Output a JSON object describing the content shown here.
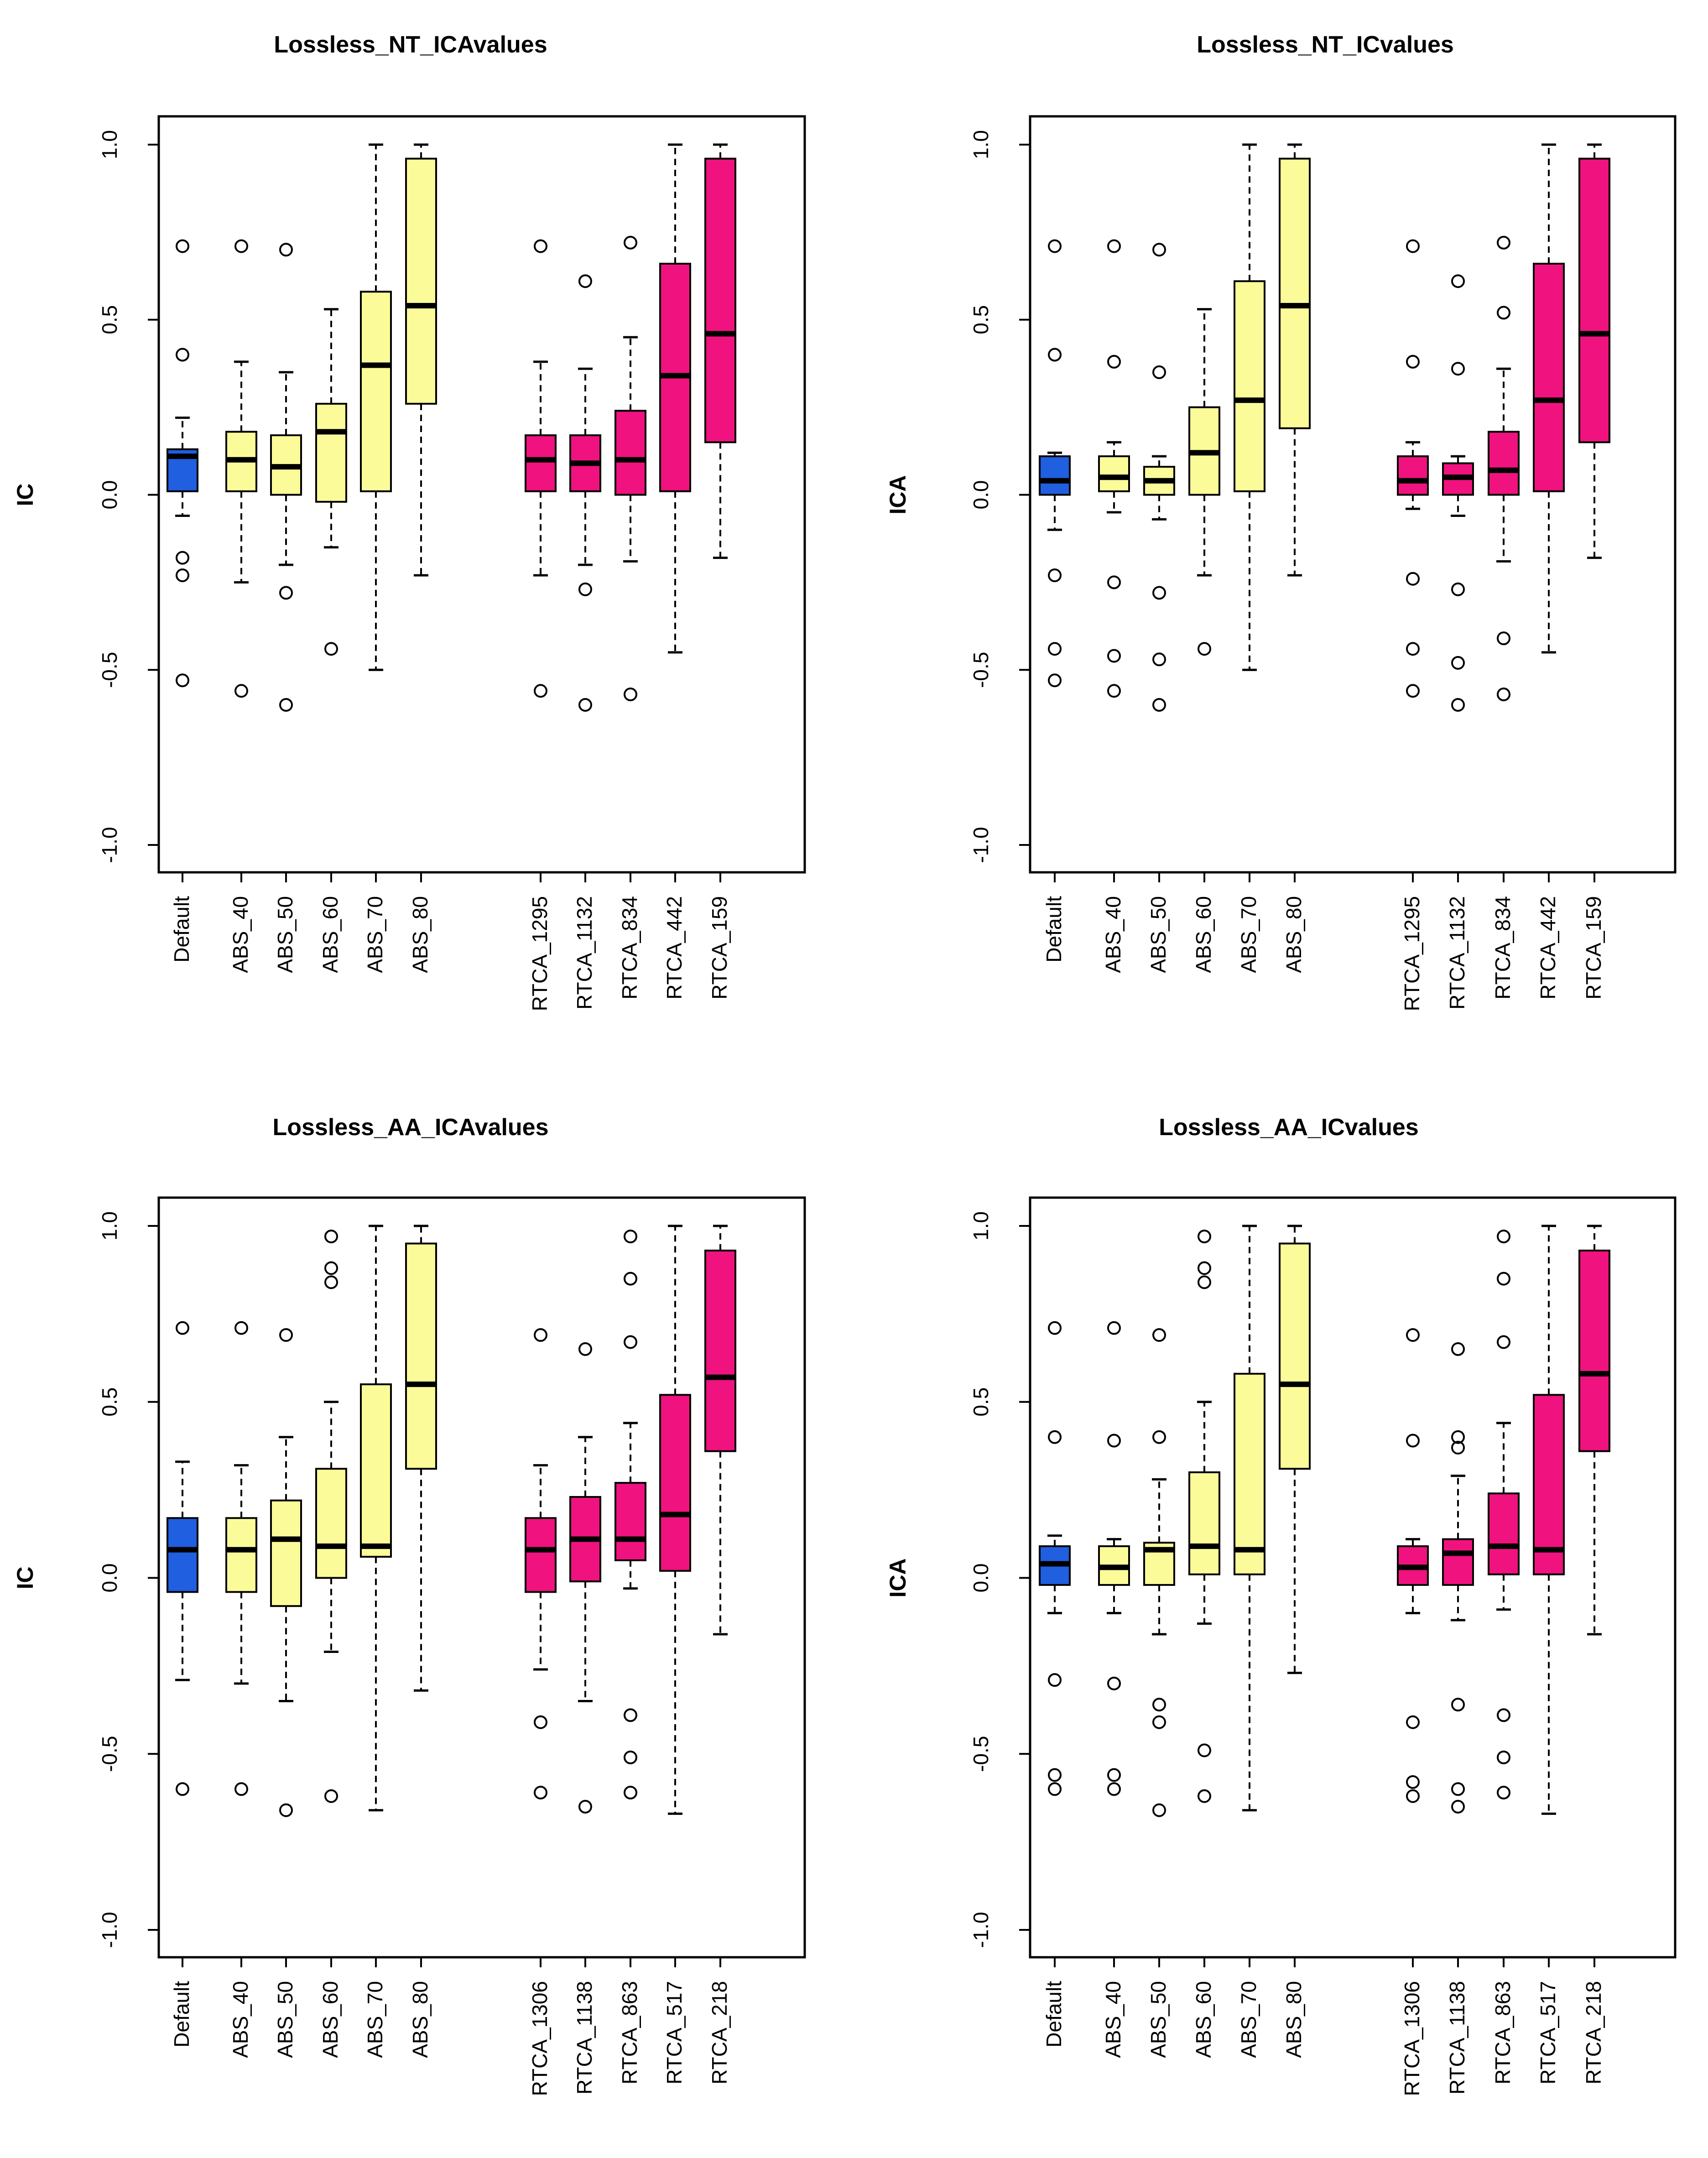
{
  "colors": {
    "default": "#1f5fe0",
    "abs": "#fbfb99",
    "rtca": "#f0127e"
  },
  "chart_data": [
    {
      "type": "box",
      "title": "Lossless_NT_ICAvalues",
      "ylabel": "IC",
      "ylim": [
        -1.0,
        1.0
      ],
      "yticks": [
        "-1.0",
        "-0.5",
        "0.0",
        "0.5",
        "1.0"
      ],
      "boxes": [
        {
          "label": "Default",
          "group": "default",
          "wlo": -0.06,
          "q1": 0.01,
          "med": 0.11,
          "q3": 0.13,
          "whi": 0.22,
          "outliers": [
            0.71,
            0.4,
            -0.18,
            -0.23,
            -0.53
          ]
        },
        {
          "label": "ABS_40",
          "group": "abs",
          "wlo": -0.25,
          "q1": 0.01,
          "med": 0.1,
          "q3": 0.18,
          "whi": 0.38,
          "outliers": [
            0.71,
            -0.56
          ]
        },
        {
          "label": "ABS_50",
          "group": "abs",
          "wlo": -0.2,
          "q1": 0.0,
          "med": 0.08,
          "q3": 0.17,
          "whi": 0.35,
          "outliers": [
            0.7,
            -0.28,
            -0.6
          ]
        },
        {
          "label": "ABS_60",
          "group": "abs",
          "wlo": -0.15,
          "q1": -0.02,
          "med": 0.18,
          "q3": 0.26,
          "whi": 0.53,
          "outliers": [
            -0.44
          ]
        },
        {
          "label": "ABS_70",
          "group": "abs",
          "wlo": -0.5,
          "q1": 0.01,
          "med": 0.37,
          "q3": 0.58,
          "whi": 1.0,
          "outliers": []
        },
        {
          "label": "ABS_80",
          "group": "abs",
          "wlo": -0.23,
          "q1": 0.26,
          "med": 0.54,
          "q3": 0.96,
          "whi": 1.0,
          "outliers": []
        },
        {
          "label": "RTCA_1295",
          "group": "rtca",
          "wlo": -0.23,
          "q1": 0.01,
          "med": 0.1,
          "q3": 0.17,
          "whi": 0.38,
          "outliers": [
            0.71,
            -0.56
          ]
        },
        {
          "label": "RTCA_1132",
          "group": "rtca",
          "wlo": -0.2,
          "q1": 0.01,
          "med": 0.09,
          "q3": 0.17,
          "whi": 0.36,
          "outliers": [
            0.61,
            -0.27,
            -0.6
          ]
        },
        {
          "label": "RTCA_834",
          "group": "rtca",
          "wlo": -0.19,
          "q1": 0.0,
          "med": 0.1,
          "q3": 0.24,
          "whi": 0.45,
          "outliers": [
            0.72,
            -0.57
          ]
        },
        {
          "label": "RTCA_442",
          "group": "rtca",
          "wlo": -0.45,
          "q1": 0.01,
          "med": 0.34,
          "q3": 0.66,
          "whi": 1.0,
          "outliers": []
        },
        {
          "label": "RTCA_159",
          "group": "rtca",
          "wlo": -0.18,
          "q1": 0.15,
          "med": 0.46,
          "q3": 0.96,
          "whi": 1.0,
          "outliers": []
        }
      ]
    },
    {
      "type": "box",
      "title": "Lossless_NT_ICvalues",
      "ylabel": "ICA",
      "ylim": [
        -1.0,
        1.0
      ],
      "yticks": [
        "-1.0",
        "-0.5",
        "0.0",
        "0.5",
        "1.0"
      ],
      "boxes": [
        {
          "label": "Default",
          "group": "default",
          "wlo": -0.1,
          "q1": 0.0,
          "med": 0.04,
          "q3": 0.11,
          "whi": 0.12,
          "outliers": [
            0.71,
            0.4,
            -0.23,
            -0.44,
            -0.53
          ]
        },
        {
          "label": "ABS_40",
          "group": "abs",
          "wlo": -0.05,
          "q1": 0.01,
          "med": 0.05,
          "q3": 0.11,
          "whi": 0.15,
          "outliers": [
            0.71,
            0.38,
            -0.25,
            -0.46,
            -0.56
          ]
        },
        {
          "label": "ABS_50",
          "group": "abs",
          "wlo": -0.07,
          "q1": 0.0,
          "med": 0.04,
          "q3": 0.08,
          "whi": 0.11,
          "outliers": [
            0.7,
            0.35,
            -0.28,
            -0.47,
            -0.6
          ]
        },
        {
          "label": "ABS_60",
          "group": "abs",
          "wlo": -0.23,
          "q1": 0.0,
          "med": 0.12,
          "q3": 0.25,
          "whi": 0.53,
          "outliers": [
            -0.44
          ]
        },
        {
          "label": "ABS_70",
          "group": "abs",
          "wlo": -0.5,
          "q1": 0.01,
          "med": 0.27,
          "q3": 0.61,
          "whi": 1.0,
          "outliers": []
        },
        {
          "label": "ABS_80",
          "group": "abs",
          "wlo": -0.23,
          "q1": 0.19,
          "med": 0.54,
          "q3": 0.96,
          "whi": 1.0,
          "outliers": []
        },
        {
          "label": "RTCA_1295",
          "group": "rtca",
          "wlo": -0.04,
          "q1": 0.0,
          "med": 0.04,
          "q3": 0.11,
          "whi": 0.15,
          "outliers": [
            0.71,
            0.38,
            -0.24,
            -0.44,
            -0.56
          ]
        },
        {
          "label": "RTCA_1132",
          "group": "rtca",
          "wlo": -0.06,
          "q1": 0.0,
          "med": 0.05,
          "q3": 0.09,
          "whi": 0.11,
          "outliers": [
            0.61,
            0.36,
            -0.27,
            -0.48,
            -0.6
          ]
        },
        {
          "label": "RTCA_834",
          "group": "rtca",
          "wlo": -0.19,
          "q1": 0.0,
          "med": 0.07,
          "q3": 0.18,
          "whi": 0.36,
          "outliers": [
            0.72,
            0.52,
            -0.41,
            -0.57
          ]
        },
        {
          "label": "RTCA_442",
          "group": "rtca",
          "wlo": -0.45,
          "q1": 0.01,
          "med": 0.27,
          "q3": 0.66,
          "whi": 1.0,
          "outliers": []
        },
        {
          "label": "RTCA_159",
          "group": "rtca",
          "wlo": -0.18,
          "q1": 0.15,
          "med": 0.46,
          "q3": 0.96,
          "whi": 1.0,
          "outliers": []
        }
      ]
    },
    {
      "type": "box",
      "title": "Lossless_AA_ICAvalues",
      "ylabel": "IC",
      "ylim": [
        -1.0,
        1.0
      ],
      "yticks": [
        "-1.0",
        "-0.5",
        "0.0",
        "0.5",
        "1.0"
      ],
      "boxes": [
        {
          "label": "Default",
          "group": "default",
          "wlo": -0.29,
          "q1": -0.04,
          "med": 0.08,
          "q3": 0.17,
          "whi": 0.33,
          "outliers": [
            0.71,
            -0.6
          ]
        },
        {
          "label": "ABS_40",
          "group": "abs",
          "wlo": -0.3,
          "q1": -0.04,
          "med": 0.08,
          "q3": 0.17,
          "whi": 0.32,
          "outliers": [
            0.71,
            -0.6
          ]
        },
        {
          "label": "ABS_50",
          "group": "abs",
          "wlo": -0.35,
          "q1": -0.08,
          "med": 0.11,
          "q3": 0.22,
          "whi": 0.4,
          "outliers": [
            0.69,
            -0.66
          ]
        },
        {
          "label": "ABS_60",
          "group": "abs",
          "wlo": -0.21,
          "q1": 0.0,
          "med": 0.09,
          "q3": 0.31,
          "whi": 0.5,
          "outliers": [
            0.97,
            0.88,
            0.84,
            -0.62
          ]
        },
        {
          "label": "ABS_70",
          "group": "abs",
          "wlo": -0.66,
          "q1": 0.06,
          "med": 0.09,
          "q3": 0.55,
          "whi": 1.0,
          "outliers": []
        },
        {
          "label": "ABS_80",
          "group": "abs",
          "wlo": -0.32,
          "q1": 0.31,
          "med": 0.55,
          "q3": 0.95,
          "whi": 1.0,
          "outliers": []
        },
        {
          "label": "RTCA_1306",
          "group": "rtca",
          "wlo": -0.26,
          "q1": -0.04,
          "med": 0.08,
          "q3": 0.17,
          "whi": 0.32,
          "outliers": [
            0.69,
            -0.41,
            -0.61
          ]
        },
        {
          "label": "RTCA_1138",
          "group": "rtca",
          "wlo": -0.35,
          "q1": -0.01,
          "med": 0.11,
          "q3": 0.23,
          "whi": 0.4,
          "outliers": [
            0.65,
            -0.65
          ]
        },
        {
          "label": "RTCA_863",
          "group": "rtca",
          "wlo": -0.03,
          "q1": 0.05,
          "med": 0.11,
          "q3": 0.27,
          "whi": 0.44,
          "outliers": [
            0.97,
            0.85,
            0.67,
            -0.39,
            -0.51,
            -0.61
          ]
        },
        {
          "label": "RTCA_517",
          "group": "rtca",
          "wlo": -0.67,
          "q1": 0.02,
          "med": 0.18,
          "q3": 0.52,
          "whi": 1.0,
          "outliers": []
        },
        {
          "label": "RTCA_218",
          "group": "rtca",
          "wlo": -0.16,
          "q1": 0.36,
          "med": 0.57,
          "q3": 0.93,
          "whi": 1.0,
          "outliers": []
        }
      ]
    },
    {
      "type": "box",
      "title": "Lossless_AA_ICvalues",
      "ylabel": "ICA",
      "ylim": [
        -1.0,
        1.0
      ],
      "yticks": [
        "-1.0",
        "-0.5",
        "0.0",
        "0.5",
        "1.0"
      ],
      "boxes": [
        {
          "label": "Default",
          "group": "default",
          "wlo": -0.1,
          "q1": -0.02,
          "med": 0.04,
          "q3": 0.09,
          "whi": 0.12,
          "outliers": [
            0.71,
            0.4,
            -0.29,
            -0.56,
            -0.6
          ]
        },
        {
          "label": "ABS_40",
          "group": "abs",
          "wlo": -0.1,
          "q1": -0.02,
          "med": 0.03,
          "q3": 0.09,
          "whi": 0.11,
          "outliers": [
            0.71,
            0.39,
            -0.3,
            -0.56,
            -0.6
          ]
        },
        {
          "label": "ABS_50",
          "group": "abs",
          "wlo": -0.16,
          "q1": -0.02,
          "med": 0.08,
          "q3": 0.1,
          "whi": 0.28,
          "outliers": [
            0.69,
            0.4,
            -0.36,
            -0.41,
            -0.66
          ]
        },
        {
          "label": "ABS_60",
          "group": "abs",
          "wlo": -0.13,
          "q1": 0.01,
          "med": 0.09,
          "q3": 0.3,
          "whi": 0.5,
          "outliers": [
            0.97,
            0.88,
            0.84,
            -0.49,
            -0.62
          ]
        },
        {
          "label": "ABS_70",
          "group": "abs",
          "wlo": -0.66,
          "q1": 0.01,
          "med": 0.08,
          "q3": 0.58,
          "whi": 1.0,
          "outliers": []
        },
        {
          "label": "ABS_80",
          "group": "abs",
          "wlo": -0.27,
          "q1": 0.31,
          "med": 0.55,
          "q3": 0.95,
          "whi": 1.0,
          "outliers": []
        },
        {
          "label": "RTCA_1306",
          "group": "rtca",
          "wlo": -0.1,
          "q1": -0.02,
          "med": 0.03,
          "q3": 0.09,
          "whi": 0.11,
          "outliers": [
            0.69,
            0.39,
            -0.41,
            -0.58,
            -0.62
          ]
        },
        {
          "label": "RTCA_1138",
          "group": "rtca",
          "wlo": -0.12,
          "q1": -0.02,
          "med": 0.07,
          "q3": 0.11,
          "whi": 0.29,
          "outliers": [
            0.65,
            0.4,
            0.37,
            -0.36,
            -0.6,
            -0.65
          ]
        },
        {
          "label": "RTCA_863",
          "group": "rtca",
          "wlo": -0.09,
          "q1": 0.01,
          "med": 0.09,
          "q3": 0.24,
          "whi": 0.44,
          "outliers": [
            0.97,
            0.85,
            0.67,
            -0.39,
            -0.51,
            -0.61
          ]
        },
        {
          "label": "RTCA_517",
          "group": "rtca",
          "wlo": -0.67,
          "q1": 0.01,
          "med": 0.08,
          "q3": 0.52,
          "whi": 1.0,
          "outliers": []
        },
        {
          "label": "RTCA_218",
          "group": "rtca",
          "wlo": -0.16,
          "q1": 0.36,
          "med": 0.58,
          "q3": 0.93,
          "whi": 1.0,
          "outliers": []
        }
      ]
    }
  ]
}
